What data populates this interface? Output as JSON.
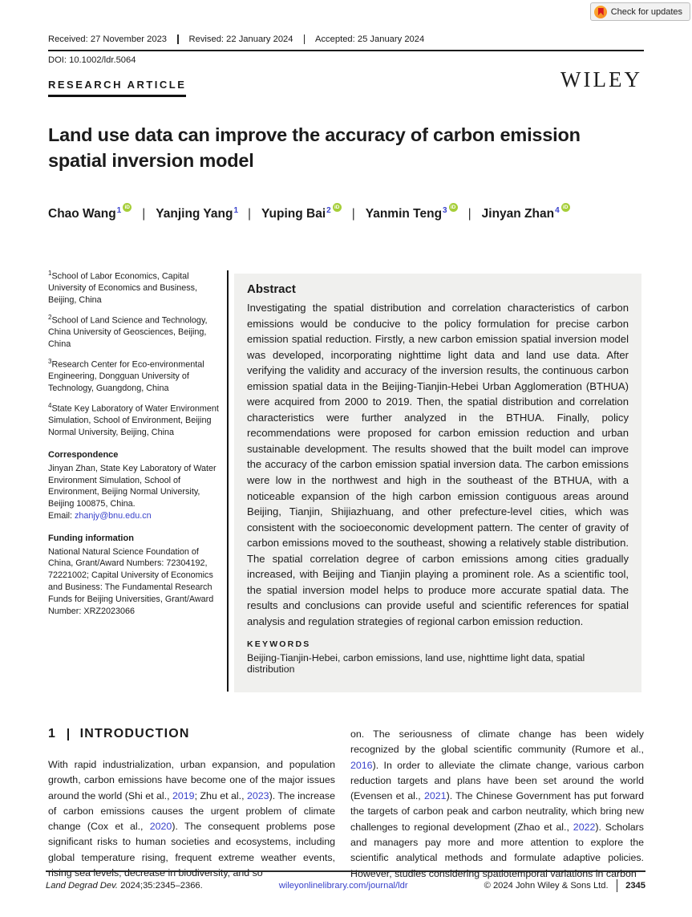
{
  "updates_button": {
    "label": "Check for updates"
  },
  "header": {
    "received": "Received: 27 November 2023",
    "revised": "Revised: 22 January 2024",
    "accepted": "Accepted: 25 January 2024",
    "doi": "DOI: 10.1002/ldr.5064",
    "article_type": "RESEARCH ARTICLE",
    "publisher_logo": "WILEY"
  },
  "title": "Land use data can improve the accuracy of carbon emission spatial inversion model",
  "authors_separator": "|",
  "authors": [
    {
      "name": "Chao Wang",
      "sup": "1",
      "orcid": true
    },
    {
      "name": "Yanjing Yang",
      "sup": "1",
      "orcid": false
    },
    {
      "name": "Yuping Bai",
      "sup": "2",
      "orcid": true
    },
    {
      "name": "Yanmin Teng",
      "sup": "3",
      "orcid": true
    },
    {
      "name": "Jinyan Zhan",
      "sup": "4",
      "orcid": true
    }
  ],
  "orcid_icon_label": "iD",
  "affiliations": [
    {
      "sup": "1",
      "text": "School of Labor Economics, Capital University of Economics and Business, Beijing, China"
    },
    {
      "sup": "2",
      "text": "School of Land Science and Technology, China University of Geosciences, Beijing, China"
    },
    {
      "sup": "3",
      "text": "Research Center for Eco-environmental Engineering, Dongguan University of Technology, Guangdong, China"
    },
    {
      "sup": "4",
      "text": "State Key Laboratory of Water Environment Simulation, School of Environment, Beijing Normal University, Beijing, China"
    }
  ],
  "correspondence": {
    "heading": "Correspondence",
    "text": "Jinyan Zhan, State Key Laboratory of Water Environment Simulation, School of Environment, Beijing Normal University, Beijing 100875, China.",
    "email_label": "Email: ",
    "email": "zhanjy@bnu.edu.cn"
  },
  "funding": {
    "heading": "Funding information",
    "text": "National Natural Science Foundation of China, Grant/Award Numbers: 72304192, 72221002; Capital University of Economics and Business: The Fundamental Research Funds for Beijing Universities, Grant/Award Number: XRZ2023066"
  },
  "abstract": {
    "heading": "Abstract",
    "text": "Investigating the spatial distribution and correlation characteristics of carbon emissions would be conducive to the policy formulation for precise carbon emission spatial reduction. Firstly, a new carbon emission spatial inversion model was developed, incorporating nighttime light data and land use data. After verifying the validity and accuracy of the inversion results, the continuous carbon emission spatial data in the Beijing-Tianjin-Hebei Urban Agglomeration (BTHUA) were acquired from 2000 to 2019. Then, the spatial distribution and correlation characteristics were further analyzed in the BTHUA. Finally, policy recommendations were proposed for carbon emission reduction and urban sustainable development. The results showed that the built model can improve the accuracy of the carbon emission spatial inversion data. The carbon emissions were low in the northwest and high in the southeast of the BTHUA, with a noticeable expansion of the high carbon emission contiguous areas around Beijing, Tianjin, Shijiazhuang, and other prefecture-level cities, which was consistent with the socioeconomic development pattern. The center of gravity of carbon emissions moved to the southeast, showing a relatively stable distribution. The spatial correlation degree of carbon emissions among cities gradually increased, with Beijing and Tianjin playing a prominent role. As a scientific tool, the spatial inversion model helps to produce more accurate spatial data. The results and conclusions can provide useful and scientific references for spatial analysis and regulation strategies of regional carbon emission reduction."
  },
  "keywords": {
    "heading": "KEYWORDS",
    "text": "Beijing-Tianjin-Hebei, carbon emissions, land use, nighttime light data, spatial distribution"
  },
  "section": {
    "number": "1",
    "divider": "|",
    "title": "INTRODUCTION"
  },
  "body": {
    "intro_left": [
      {
        "t": "With rapid industrialization, urban expansion, and population growth, carbon emissions have become one of the major issues around the world (Shi et al., "
      },
      {
        "t": "2019",
        "link": true
      },
      {
        "t": "; Zhu et al., "
      },
      {
        "t": "2023",
        "link": true
      },
      {
        "t": "). The increase of carbon emissions causes the urgent problem of climate change (Cox et al., "
      },
      {
        "t": "2020",
        "link": true
      },
      {
        "t": "). The consequent problems pose significant risks to human societies and ecosystems, including global temperature rising, frequent extreme weather events, rising sea levels, decrease in biodiversity, and so"
      }
    ],
    "intro_right": [
      {
        "t": "on. The seriousness of climate change has been widely recognized by the global scientific community (Rumore et al., "
      },
      {
        "t": "2016",
        "link": true
      },
      {
        "t": "). In order to alleviate the climate change, various carbon reduction targets and plans have been set around the world (Evensen et al., "
      },
      {
        "t": "2021",
        "link": true
      },
      {
        "t": "). The Chinese Government has put forward the targets of carbon peak and carbon neutrality, which bring new challenges to regional development (Zhao et al., "
      },
      {
        "t": "2022",
        "link": true
      },
      {
        "t": "). Scholars and managers pay more and more attention to explore the scientific analytical methods and formulate adaptive policies. However, studies considering spatiotemporal variations in carbon"
      }
    ]
  },
  "footer": {
    "journal": "Land Degrad Dev.",
    "citation_rest": " 2024;35:2345–2366.",
    "link": "wileyonlinelibrary.com/journal/ldr",
    "copyright": "© 2024 John Wiley & Sons Ltd.",
    "page": "2345"
  },
  "colors": {
    "link_blue": "#3a43cb",
    "orcid_green": "#a6ce39",
    "abstract_bg": "#f0f0ee",
    "crossmark_orange": "#f6871f",
    "crossmark_red": "#d71920"
  }
}
